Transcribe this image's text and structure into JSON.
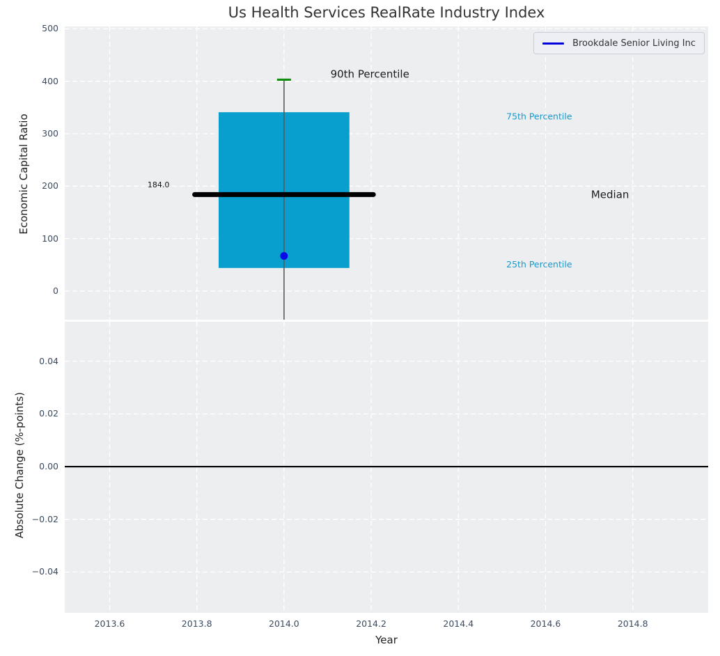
{
  "figure": {
    "title": "Us Health Services RealRate Industry Index",
    "panel_bg": "#eceef0",
    "grid_color": "#ffffff"
  },
  "legend": {
    "entries": [
      {
        "label": "Brookdale Senior Living Inc",
        "color": "#0000dd",
        "marker": "line"
      }
    ]
  },
  "chart_data": [
    {
      "type": "box",
      "panel": "top",
      "title": "Us Health Services RealRate Industry Index",
      "ylabel": "Economic Capital Ratio",
      "xlim": [
        2013.497,
        2014.973
      ],
      "ylim": [
        -54.5,
        504.5
      ],
      "grid": true,
      "yticks": [
        0,
        100,
        200,
        300,
        400,
        500
      ],
      "ytick_labels": [
        "0",
        "100",
        "200",
        "300",
        "400",
        "500"
      ],
      "xticks": [
        2013.6,
        2013.8,
        2014.0,
        2014.2,
        2014.4,
        2014.6,
        2014.8
      ],
      "show_xtick_labels": false,
      "box": {
        "x": 2014.0,
        "width": 0.3,
        "q1": 44,
        "median": 184,
        "q3": 341,
        "p90": 403,
        "whisker_extends_below_axis": true,
        "median_label": "184.0",
        "fill": "#089fce",
        "median_color": "#000000",
        "cap_color": "#0f8d0f",
        "whisker_color": "#5a5a5a",
        "median_line_span": [
          2013.795,
          2014.205
        ],
        "cap_halfwidth": 0.016
      },
      "points": [
        {
          "x": 2014.0,
          "y": 67,
          "color": "#0a0ae8",
          "series": "Brookdale Senior Living Inc"
        }
      ],
      "annotations": [
        {
          "text": "184.0",
          "x": 2013.712,
          "y": 202,
          "color": "#111111",
          "size": 11,
          "anchor": "middle"
        },
        {
          "text": "90th Percentile",
          "x": 2014.197,
          "y": 413,
          "color": "#1b1b1b",
          "size": 15,
          "anchor": "middle"
        },
        {
          "text": "75th Percentile",
          "x": 2014.51,
          "y": 332,
          "color": "#1a98cd",
          "size": 12.5,
          "anchor": "start"
        },
        {
          "text": "Median",
          "x": 2014.748,
          "y": 183,
          "color": "#1b1b1b",
          "size": 15,
          "anchor": "middle"
        },
        {
          "text": "25th Percentile",
          "x": 2014.51,
          "y": 50,
          "color": "#1a98cd",
          "size": 12.5,
          "anchor": "start"
        }
      ]
    },
    {
      "type": "line",
      "panel": "bottom",
      "ylabel": "Absolute Change (%-points)",
      "xlabel": "Year",
      "xlim": [
        2013.497,
        2014.973
      ],
      "ylim": [
        -0.0555,
        0.055
      ],
      "grid": true,
      "yticks": [
        -0.04,
        -0.02,
        0.0,
        0.02,
        0.04
      ],
      "ytick_labels": [
        "−0.04",
        "−0.02",
        "0.00",
        "0.02",
        "0.04"
      ],
      "xticks": [
        2013.6,
        2013.8,
        2014.0,
        2014.2,
        2014.4,
        2014.6,
        2014.8
      ],
      "xtick_labels": [
        "2013.6",
        "2013.8",
        "2014.0",
        "2014.2",
        "2014.4",
        "2014.6",
        "2014.8"
      ],
      "show_xtick_labels": true,
      "zero_line": {
        "y": 0.0,
        "color": "#000000",
        "width": 2.2
      },
      "series": []
    }
  ]
}
